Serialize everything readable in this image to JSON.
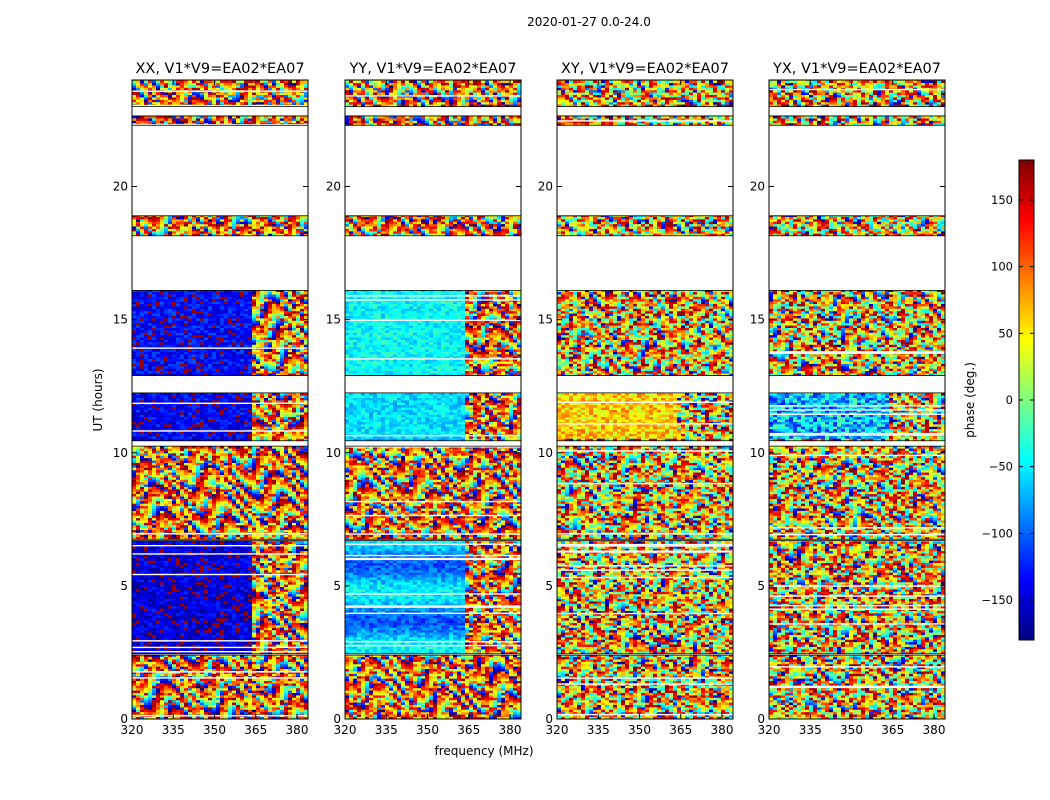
{
  "figure": {
    "title": "2020-01-27 0.0-24.0",
    "xlabel": "frequency (MHz)",
    "ylabel": "UT (hours)"
  },
  "chart_data": {
    "type": "heatmap",
    "title": "2020-01-27 0.0-24.0",
    "xlabel": "frequency (MHz)",
    "ylabel": "UT (hours)",
    "xlim": [
      320,
      384
    ],
    "ylim": [
      0,
      24
    ],
    "xticks": [
      320,
      335,
      350,
      365,
      380
    ],
    "yticks": [
      0,
      5,
      10,
      15,
      20
    ],
    "panels": [
      {
        "title": "XX, V1*V9=EA02*EA07",
        "profile": "xx"
      },
      {
        "title": "YY, V1*V9=EA02*EA07",
        "profile": "yy"
      },
      {
        "title": "XY, V1*V9=EA02*EA07",
        "profile": "xy"
      },
      {
        "title": "YX, V1*V9=EA02*EA07",
        "profile": "yx"
      }
    ],
    "data_blocks_ut": [
      [
        0,
        2.4
      ],
      [
        2.45,
        6.7
      ],
      [
        6.75,
        10.25
      ],
      [
        10.45,
        12.25
      ],
      [
        12.9,
        16.1
      ],
      [
        18.15,
        18.9
      ],
      [
        22.3,
        22.65
      ],
      [
        23.0,
        24
      ]
    ],
    "blank_gaps_ut": [
      [
        2.4,
        2.45
      ],
      [
        6.7,
        6.75
      ],
      [
        10.25,
        10.45
      ],
      [
        12.25,
        12.9
      ],
      [
        16.1,
        18.15
      ],
      [
        18.9,
        22.3
      ],
      [
        22.65,
        23.0
      ]
    ],
    "transition_freq_mhz": 363,
    "colorbar": {
      "label": "phase (deg.)",
      "range": [
        -180,
        180
      ],
      "ticks": [
        150,
        100,
        50,
        0,
        -50,
        -100,
        -150
      ],
      "tick_labels": [
        "150",
        "100",
        "50",
        "0",
        "−50",
        "−100",
        "−150"
      ],
      "colormap": "jet",
      "colors": [
        "#00007f",
        "#0000ff",
        "#007fff",
        "#00ffff",
        "#7fff7f",
        "#ffff00",
        "#ff7f00",
        "#ff0000",
        "#7f0000"
      ]
    }
  }
}
